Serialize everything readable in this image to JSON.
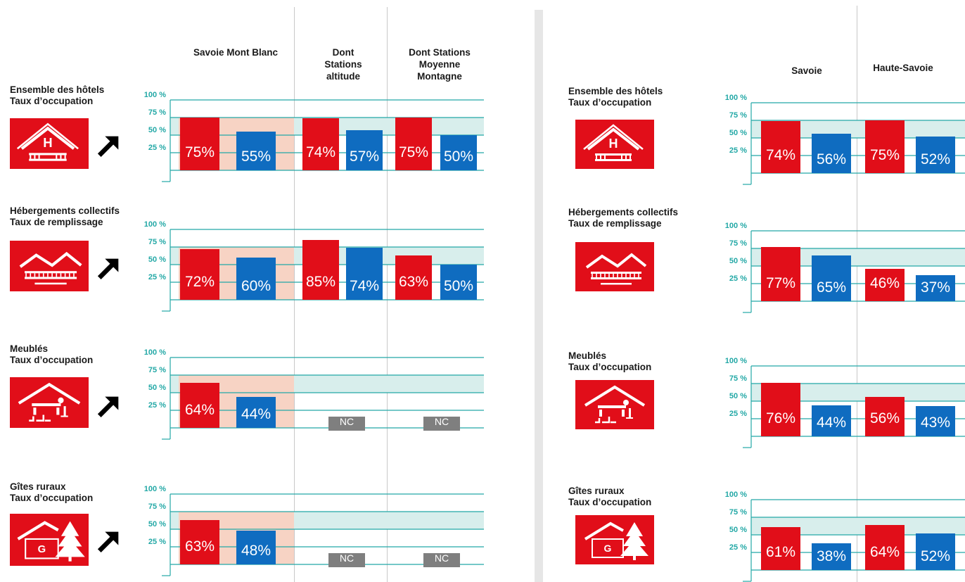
{
  "colors": {
    "red": "#e10e19",
    "blue": "#0f6cc0",
    "teal": "#23a8a6",
    "band_teal": "#d8eeec",
    "band_peach": "#f7d3c4",
    "nc_gray": "#7f7f7f"
  },
  "left": {
    "headers": [
      "Savoie Mont Blanc",
      "Dont\nStations\naltitude",
      "Dont Stations\nMoyenne\nMontagne"
    ]
  },
  "right": {
    "headers": [
      "Savoie",
      "Haute-Savoie"
    ]
  },
  "chart_data": [
    {
      "type": "bar",
      "panel": "left",
      "icon": "hotel-icon",
      "trend": "up",
      "title": "Ensemble des hôtels",
      "subtitle": "Taux d’occupation",
      "yticks": [
        "100 %",
        "75 %",
        "50 %",
        "25 %"
      ],
      "ylim": [
        0,
        100
      ],
      "categories": [
        "Savoie Mont Blanc",
        "Dont Stations altitude",
        "Dont Stations Moyenne Montagne"
      ],
      "series": [
        {
          "values": [
            75,
            74,
            75
          ],
          "labels": [
            "75%",
            "74%",
            "75%"
          ]
        },
        {
          "values": [
            55,
            57,
            50
          ],
          "labels": [
            "55%",
            "57%",
            "50%"
          ]
        }
      ]
    },
    {
      "type": "bar",
      "panel": "left",
      "icon": "collective-housing-icon",
      "trend": "up",
      "title": "Hébergements collectifs",
      "subtitle": "Taux de remplissage",
      "yticks": [
        "100 %",
        "75 %",
        "50 %",
        "25 %"
      ],
      "ylim": [
        0,
        100
      ],
      "categories": [
        "Savoie Mont Blanc",
        "Dont Stations altitude",
        "Dont Stations Moyenne Montagne"
      ],
      "series": [
        {
          "values": [
            72,
            85,
            63
          ],
          "labels": [
            "72%",
            "85%",
            "63%"
          ]
        },
        {
          "values": [
            60,
            74,
            50
          ],
          "labels": [
            "60%",
            "74%",
            "50%"
          ]
        }
      ]
    },
    {
      "type": "bar",
      "panel": "left",
      "icon": "furnished-rental-icon",
      "trend": "up",
      "title": "Meublés",
      "subtitle": "Taux d’occupation",
      "yticks": [
        "100 %",
        "75 %",
        "50 %",
        "25 %"
      ],
      "ylim": [
        0,
        100
      ],
      "categories": [
        "Savoie Mont Blanc",
        "Dont Stations altitude",
        "Dont Stations Moyenne Montagne"
      ],
      "series": [
        {
          "values": [
            64,
            null,
            null
          ],
          "labels": [
            "64%",
            "NC",
            "NC"
          ]
        },
        {
          "values": [
            44,
            null,
            null
          ],
          "labels": [
            "44%",
            "",
            ""
          ]
        }
      ]
    },
    {
      "type": "bar",
      "panel": "left",
      "icon": "rural-gite-icon",
      "trend": "up",
      "title": "Gîtes ruraux",
      "subtitle": "Taux d’occupation",
      "yticks": [
        "100 %",
        "75 %",
        "50 %",
        "25 %"
      ],
      "ylim": [
        0,
        100
      ],
      "categories": [
        "Savoie Mont Blanc",
        "Dont Stations altitude",
        "Dont Stations Moyenne Montagne"
      ],
      "series": [
        {
          "values": [
            63,
            null,
            null
          ],
          "labels": [
            "63%",
            "NC",
            "NC"
          ]
        },
        {
          "values": [
            48,
            null,
            null
          ],
          "labels": [
            "48%",
            "",
            ""
          ]
        }
      ]
    },
    {
      "type": "bar",
      "panel": "right",
      "icon": "hotel-icon",
      "title": "Ensemble des hôtels",
      "subtitle": "Taux d’occupation",
      "yticks": [
        "100 %",
        "75 %",
        "50 %",
        "25 %"
      ],
      "ylim": [
        0,
        100
      ],
      "categories": [
        "Savoie",
        "Haute-Savoie"
      ],
      "series": [
        {
          "values": [
            74,
            75
          ],
          "labels": [
            "74%",
            "75%"
          ]
        },
        {
          "values": [
            56,
            52
          ],
          "labels": [
            "56%",
            "52%"
          ]
        }
      ]
    },
    {
      "type": "bar",
      "panel": "right",
      "icon": "collective-housing-icon",
      "title": "Hébergements collectifs",
      "subtitle": "Taux de remplissage",
      "yticks": [
        "100 %",
        "75 %",
        "50 %",
        "25 %"
      ],
      "ylim": [
        0,
        100
      ],
      "categories": [
        "Savoie",
        "Haute-Savoie"
      ],
      "series": [
        {
          "values": [
            77,
            46
          ],
          "labels": [
            "77%",
            "46%"
          ]
        },
        {
          "values": [
            65,
            37
          ],
          "labels": [
            "65%",
            "37%"
          ]
        }
      ]
    },
    {
      "type": "bar",
      "panel": "right",
      "icon": "furnished-rental-icon",
      "title": "Meublés",
      "subtitle": "Taux d’occupation",
      "yticks": [
        "100 %",
        "75 %",
        "50 %",
        "25 %"
      ],
      "ylim": [
        0,
        100
      ],
      "categories": [
        "Savoie",
        "Haute-Savoie"
      ],
      "series": [
        {
          "values": [
            76,
            56
          ],
          "labels": [
            "76%",
            "56%"
          ]
        },
        {
          "values": [
            44,
            43
          ],
          "labels": [
            "44%",
            "43%"
          ]
        }
      ]
    },
    {
      "type": "bar",
      "panel": "right",
      "icon": "rural-gite-icon",
      "title": "Gîtes ruraux",
      "subtitle": "Taux d’occupation",
      "yticks": [
        "100 %",
        "75 %",
        "50 %",
        "25 %"
      ],
      "ylim": [
        0,
        100
      ],
      "categories": [
        "Savoie",
        "Haute-Savoie"
      ],
      "series": [
        {
          "values": [
            61,
            64
          ],
          "labels": [
            "61%",
            "64%"
          ]
        },
        {
          "values": [
            38,
            52
          ],
          "labels": [
            "38%",
            "52%"
          ]
        }
      ]
    }
  ]
}
